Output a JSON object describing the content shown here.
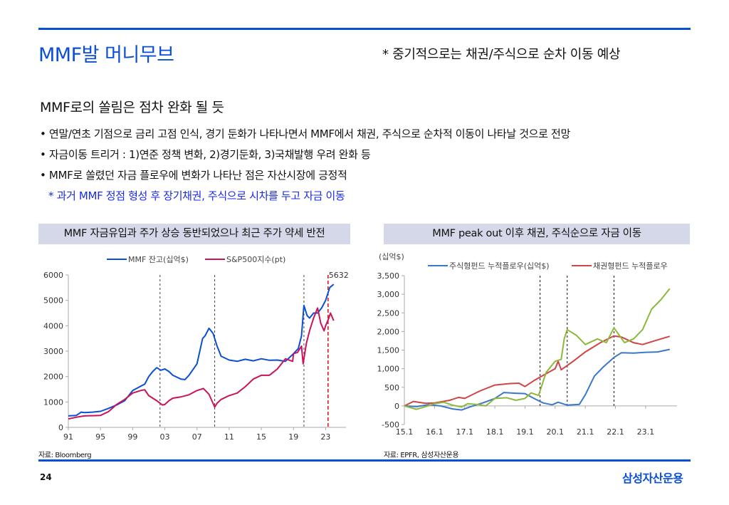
{
  "header": {
    "title": "MMF발 머니무브",
    "subnote": "* 중기적으로는 채권/주식으로 순차 이동 예상"
  },
  "section": {
    "heading": "MMF로의 쏠림은 점차 완화 될 듯",
    "bullets": [
      "• 연말/연초 기점으로 금리 고점 인식, 경기 둔화가 나타나면서 MMF에서 채권, 주식으로 순차적 이동이 나타날 것으로 전망",
      "• 자금이동 트리거 : 1)연준 정책 변화, 2)경기둔화, 3)국채발행 우려 완화 등",
      "• MMF로 쏠렸던 자금 플로우에 변화가 나타난 점은 자산시장에 긍정적"
    ],
    "note": "* 과거 MMF 정점 형성 후 장기채권, 주식으로 시차를 두고 자금 이동"
  },
  "chart_data": [
    {
      "type": "line",
      "panel_title": "MMF 자금유입과 주가 상승 동반되었으나 최근 주가 약세 반전",
      "source": "자료: Bloomberg",
      "xlabel": "",
      "ylabel": "",
      "xlim": [
        1991,
        2025
      ],
      "ylim": [
        0,
        6000
      ],
      "yticks": [
        "0",
        "1000",
        "2000",
        "3000",
        "4000",
        "5000",
        "6000"
      ],
      "ytick_values": [
        0,
        1000,
        2000,
        3000,
        4000,
        5000,
        6000
      ],
      "xticks": [
        "91",
        "95",
        "99",
        "03",
        "07",
        "11",
        "15",
        "19",
        "23"
      ],
      "xtick_values": [
        1991,
        1995,
        1999,
        2003,
        2007,
        2011,
        2015,
        2019,
        2023
      ],
      "vlines": [
        {
          "x": 2002.4,
          "style": "dashed",
          "color": "#444444"
        },
        {
          "x": 2009.2,
          "style": "dashed",
          "color": "#444444"
        },
        {
          "x": 2020.3,
          "style": "dashed",
          "color": "#444444"
        },
        {
          "x": 2023.3,
          "style": "dashed",
          "color": "#d61f1f"
        }
      ],
      "annotation": {
        "text": "5632",
        "x": 2023.3,
        "y": 5632
      },
      "legend_position": "top-center",
      "series": [
        {
          "name": "MMF 잔고(십억$)",
          "color": "#0a4fd6",
          "x": [
            1991,
            1992,
            1992.6,
            1993,
            1994,
            1995,
            1996,
            1997,
            1998,
            1999,
            2000,
            2000.5,
            2001,
            2001.5,
            2002,
            2002.5,
            2003,
            2003.5,
            2004,
            2005,
            2005.5,
            2006,
            2007,
            2007.7,
            2008,
            2008.5,
            2009,
            2009.5,
            2010,
            2011,
            2012,
            2013,
            2014,
            2015,
            2016,
            2017,
            2018,
            2019,
            2019.6,
            2020,
            2020.3,
            2020.7,
            2021,
            2021.5,
            2022,
            2022.5,
            2023,
            2023.5,
            2024
          ],
          "y": [
            450,
            470,
            600,
            580,
            600,
            630,
            750,
            880,
            1050,
            1450,
            1620,
            1700,
            2000,
            2200,
            2350,
            2250,
            2300,
            2200,
            2050,
            1900,
            1880,
            2050,
            2500,
            3500,
            3600,
            3900,
            3700,
            3200,
            2800,
            2650,
            2600,
            2680,
            2620,
            2700,
            2640,
            2650,
            2600,
            2900,
            3100,
            3600,
            4800,
            4400,
            4300,
            4500,
            4500,
            4700,
            5000,
            5500,
            5632
          ]
        },
        {
          "name": "S&P500지수(pt)",
          "color": "#c8145a",
          "x": [
            1991,
            1992,
            1993,
            1994,
            1995,
            1996,
            1997,
            1998,
            1999,
            2000,
            2000.5,
            2001,
            2002,
            2002.7,
            2003,
            2003.5,
            2004,
            2005,
            2006,
            2007,
            2007.8,
            2008.5,
            2009.2,
            2009.5,
            2010,
            2011,
            2012,
            2013,
            2014,
            2015,
            2016,
            2017,
            2018,
            2018.9,
            2019,
            2019.5,
            2020,
            2020.2,
            2020.6,
            2021,
            2021.5,
            2022,
            2022.4,
            2022.8,
            2023,
            2023.4,
            2023.6,
            2024
          ],
          "y": [
            330,
            400,
            450,
            460,
            470,
            620,
            900,
            1100,
            1350,
            1450,
            1480,
            1250,
            1050,
            880,
            900,
            1050,
            1150,
            1200,
            1280,
            1450,
            1530,
            1300,
            800,
            950,
            1100,
            1250,
            1350,
            1600,
            1900,
            2050,
            2050,
            2300,
            2700,
            2600,
            2900,
            2950,
            3200,
            2500,
            3300,
            3800,
            4300,
            4700,
            4100,
            3800,
            4000,
            4300,
            4500,
            4200
          ]
        }
      ]
    },
    {
      "type": "line",
      "panel_title": "MMF peak out 이후 채권, 주식순으로 자금 이동",
      "source": "자료: EPFR, 삼성자산운용",
      "ylabel": "(십억$)",
      "xlabel": "",
      "xlim": [
        2015.0,
        2023.9
      ],
      "ylim": [
        -500,
        3500
      ],
      "yticks": [
        "-500",
        "0",
        "500",
        "1,000",
        "1,500",
        "2,000",
        "2,500",
        "3,000",
        "3,500"
      ],
      "ytick_values": [
        -500,
        0,
        500,
        1000,
        1500,
        2000,
        2500,
        3000,
        3500
      ],
      "xticks": [
        "15.1",
        "16.1",
        "17.1",
        "18.1",
        "19.1",
        "20.1",
        "21.1",
        "22.1",
        "23.1"
      ],
      "xtick_values": [
        2015,
        2016,
        2017,
        2018,
        2019,
        2020,
        2021,
        2022,
        2023
      ],
      "vlines": [
        {
          "x": 2019.5,
          "style": "dashed",
          "color": "#111111"
        },
        {
          "x": 2020.4,
          "style": "dashed",
          "color": "#111111"
        },
        {
          "x": 2021.95,
          "style": "dashed",
          "color": "#111111"
        }
      ],
      "legend_position": "top",
      "series": [
        {
          "name": "주식형펀드 누적플로우(십억$)",
          "color": "#3b78c8",
          "x": [
            2015.0,
            2015.4,
            2015.8,
            2016.2,
            2016.6,
            2016.9,
            2017.2,
            2017.6,
            2018.0,
            2018.3,
            2018.7,
            2019.0,
            2019.3,
            2019.6,
            2019.9,
            2020.1,
            2020.4,
            2020.8,
            2021.0,
            2021.3,
            2021.6,
            2021.95,
            2022.2,
            2022.6,
            2023.0,
            2023.4,
            2023.8
          ],
          "y": [
            0,
            -20,
            30,
            0,
            -80,
            -110,
            -20,
            80,
            200,
            360,
            340,
            330,
            200,
            80,
            30,
            100,
            20,
            40,
            300,
            800,
            1050,
            1300,
            1430,
            1420,
            1440,
            1450,
            1520
          ]
        },
        {
          "name": "채권형펀드 누적플로우",
          "color": "#d04545",
          "x": [
            2015.0,
            2015.3,
            2015.7,
            2016.0,
            2016.5,
            2016.8,
            2017.0,
            2017.5,
            2018.0,
            2018.5,
            2018.8,
            2019.0,
            2019.3,
            2019.6,
            2020.0,
            2020.1,
            2020.2,
            2020.6,
            2021.0,
            2021.5,
            2021.95,
            2022.2,
            2022.6,
            2022.9,
            2023.3,
            2023.8
          ],
          "y": [
            0,
            120,
            70,
            80,
            150,
            230,
            200,
            400,
            560,
            600,
            610,
            520,
            680,
            820,
            1000,
            1200,
            970,
            1200,
            1450,
            1700,
            1880,
            1850,
            1700,
            1650,
            1750,
            1870
          ]
        },
        {
          "name": "",
          "color": "#8db83c",
          "x": [
            2015.0,
            2015.4,
            2015.7,
            2016.0,
            2016.3,
            2016.6,
            2016.9,
            2017.1,
            2017.5,
            2017.7,
            2018.0,
            2018.4,
            2018.7,
            2019.0,
            2019.2,
            2019.45,
            2019.7,
            2020.0,
            2020.2,
            2020.3,
            2020.4,
            2020.7,
            2021.0,
            2021.4,
            2021.7,
            2021.95,
            2022.3,
            2022.6,
            2022.9,
            2023.2,
            2023.5,
            2023.8
          ],
          "y": [
            0,
            -90,
            -20,
            60,
            100,
            20,
            -30,
            60,
            30,
            0,
            200,
            220,
            150,
            200,
            350,
            280,
            900,
            1200,
            1250,
            1800,
            2050,
            1900,
            1650,
            1800,
            1700,
            2100,
            1700,
            1800,
            2050,
            2600,
            2850,
            3150
          ]
        }
      ]
    }
  ],
  "footer": {
    "page_number": "24",
    "brand": "삼성자산운용"
  }
}
